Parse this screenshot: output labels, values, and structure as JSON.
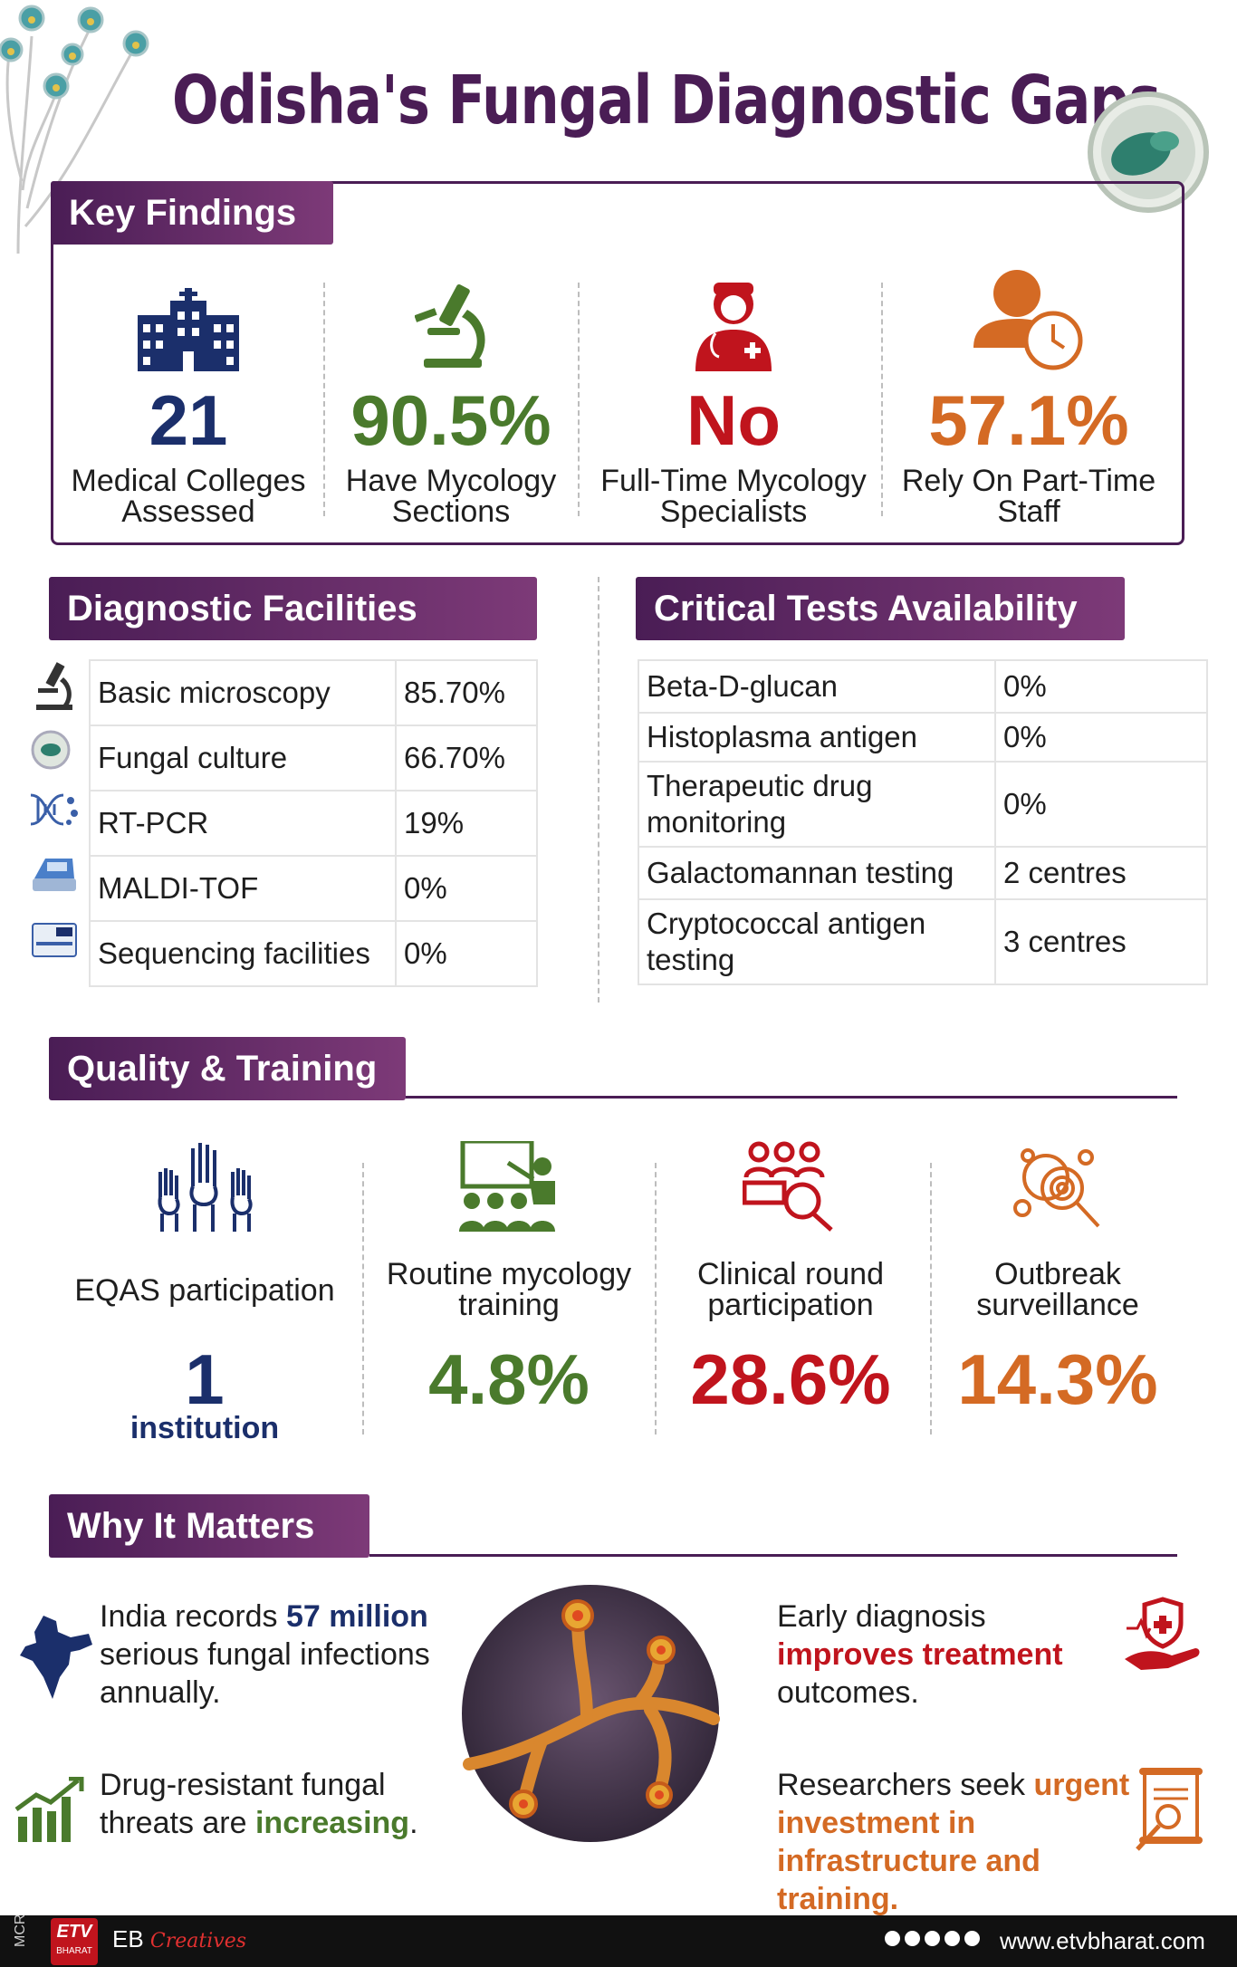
{
  "title": "Odisha's Fungal Diagnostic Gaps",
  "colors": {
    "purple": "#4a1d55",
    "navy": "#1b2f6b",
    "green": "#4a7a2c",
    "red": "#c0141d",
    "orange": "#d46a24"
  },
  "key_findings": {
    "heading": "Key Findings",
    "items": [
      {
        "value": "21",
        "label_line1": "Medical Colleges",
        "label_line2": "Assessed",
        "icon": "hospital-building-icon"
      },
      {
        "value": "90.5%",
        "label_line1": "Have Mycology",
        "label_line2": "Sections",
        "icon": "microscope-icon"
      },
      {
        "value": "No",
        "label_line1": "Full-Time Mycology",
        "label_line2": "Specialists",
        "icon": "doctor-icon"
      },
      {
        "value": "57.1%",
        "label_line1": "Rely On Part-Time",
        "label_line2": "Staff",
        "icon": "person-clock-icon"
      }
    ]
  },
  "diagnostic_facilities": {
    "heading": "Diagnostic Facilities",
    "rows": [
      {
        "name": "Basic microscopy",
        "value": "85.70%",
        "icon": "microscope-icon"
      },
      {
        "name": "Fungal culture",
        "value": "66.70%",
        "icon": "petri-dish-icon"
      },
      {
        "name": "RT-PCR",
        "value": "19%",
        "icon": "dna-icon"
      },
      {
        "name": "MALDI-TOF",
        "value": "0%",
        "icon": "analyzer-icon"
      },
      {
        "name": "Sequencing facilities",
        "value": "0%",
        "icon": "sequencer-icon"
      }
    ]
  },
  "critical_tests": {
    "heading": "Critical Tests Availability",
    "rows": [
      {
        "name": "Beta-D-glucan",
        "value": "0%"
      },
      {
        "name": "Histoplasma antigen",
        "value": "0%"
      },
      {
        "name": "Therapeutic drug monitoring",
        "value": "0%"
      },
      {
        "name": "Galactomannan testing",
        "value": "2 centres"
      },
      {
        "name": "Cryptococcal antigen testing",
        "value": "3 centres"
      }
    ]
  },
  "quality_training": {
    "heading": "Quality & Training",
    "items": [
      {
        "label": "EQAS participation",
        "value": "1",
        "sub": "institution",
        "icon": "raised-hands-icon"
      },
      {
        "label": "Routine mycology training",
        "value": "4.8%",
        "icon": "classroom-icon"
      },
      {
        "label": "Clinical round participation",
        "value": "28.6%",
        "icon": "group-search-icon"
      },
      {
        "label": "Outbreak surveillance",
        "value": "14.3%",
        "icon": "virus-magnifier-icon"
      }
    ]
  },
  "why_it_matters": {
    "heading": "Why It Matters",
    "india": {
      "pre": "India records ",
      "highlight": "57 million",
      "post": "serious fungal infections annually."
    },
    "drug": {
      "pre": "Drug-resistant fungal threats are ",
      "highlight": "increasing",
      "post": "."
    },
    "early": {
      "pre": "Early diagnosis ",
      "highlight": "improves treatment",
      "post": " outcomes."
    },
    "research": {
      "pre": "Researchers seek ",
      "highlight": "urgent investment in infrastructure and training."
    }
  },
  "footer": {
    "mcr": "MCR",
    "brand": "EB",
    "brand_script": "Creatives",
    "etv_sub": "BHARAT",
    "url": "www.etvbharat.com"
  }
}
